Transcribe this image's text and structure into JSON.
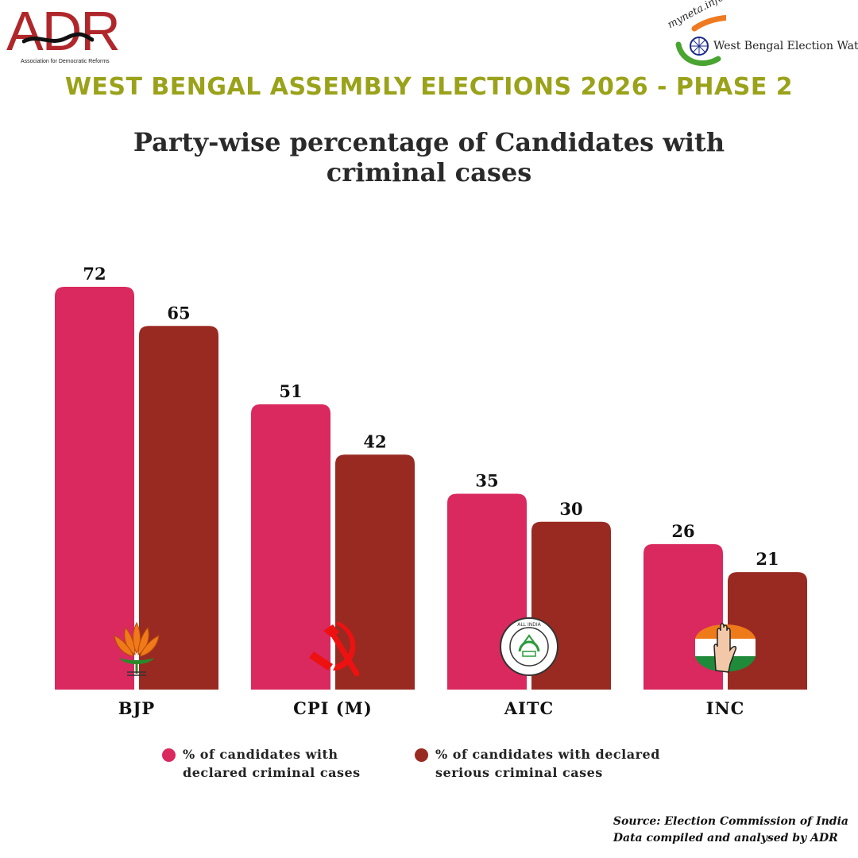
{
  "header": {
    "adr_logo": {
      "text": "ADR",
      "subtitle": "Association for Democratic Reforms"
    },
    "myneta_logo": {
      "script": "myneta.info",
      "caption": "West Bengal Election Watch"
    },
    "headline": "WEST BENGAL ASSEMBLY ELECTIONS 2026 - PHASE 2"
  },
  "colors": {
    "series1": "#d9295f",
    "series2": "#992a22",
    "headline": "#9aa21a",
    "adr_red": "#b0272b"
  },
  "chart_data": {
    "type": "bar",
    "title_line1": "Party-wise percentage of  Candidates with",
    "title_line2": "criminal cases",
    "categories": [
      "BJP",
      "CPI (M)",
      "AITC",
      "INC"
    ],
    "category_icons": [
      "lotus-icon",
      "hammer-sickle-icon",
      "aitc-emblem-icon",
      "hand-icon"
    ],
    "series": [
      {
        "name": "% of candidates with declared criminal cases",
        "values": [
          72,
          51,
          35,
          26
        ]
      },
      {
        "name": "% of candidates with declared serious criminal cases",
        "values": [
          65,
          42,
          30,
          21
        ]
      }
    ],
    "xlabel": "",
    "ylabel": "",
    "ylim": [
      0,
      72
    ],
    "grid": false,
    "legend_position": "bottom"
  },
  "legend": {
    "item1_line1": "% of candidates with",
    "item1_line2": "declared criminal cases",
    "item2_line1": "% of candidates with declared",
    "item2_line2": "serious criminal cases"
  },
  "footer": {
    "source_line1": "Source: Election Commission of India",
    "source_line2": "Data compiled and analysed by ADR"
  }
}
